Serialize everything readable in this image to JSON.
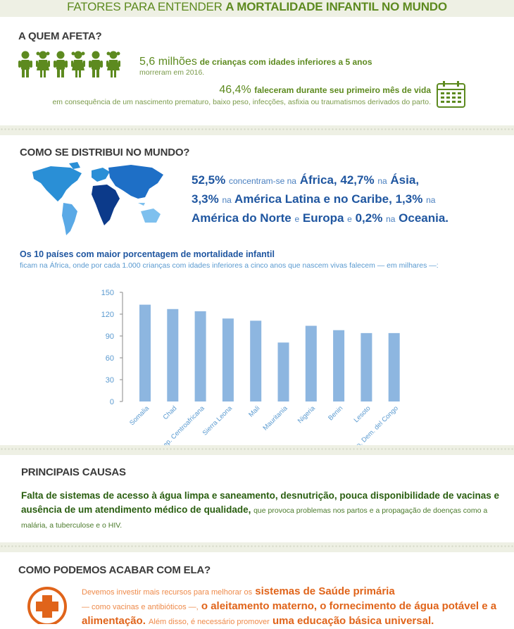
{
  "title": {
    "part1": "FATORES PARA ENTENDER",
    "part2": "A MORTALIDADE INFANTIL NO MUNDO"
  },
  "section1": {
    "heading": "A QUEM AFETA?",
    "stat1_value": "5,6 milhões",
    "stat1_text": "de crianças com idades inferiores a 5 anos",
    "stat1_sub": "morreram em 2016.",
    "stat2_value": "46,4%",
    "stat2_text": "faleceram durante seu primeiro mês de vida",
    "stat2_sub": "em consequência de um nascimento prematuro, baixo peso, infecções, asfixia ou traumatismos derivados do parto."
  },
  "section2": {
    "heading": "COMO SE DISTRIBUI NO MUNDO?",
    "p1": "52,5%",
    "t1": "concentram-se na",
    "r1": "África,",
    "p2": "42,7%",
    "t2": "na",
    "r2": "Ásia,",
    "p3": "3,3%",
    "t3": "na",
    "r3": "América Latina e no Caribe,",
    "p4": "1,3%",
    "t4": "na",
    "r4": "América do Norte",
    "t5": "e",
    "r5": "Europa",
    "t6": "e",
    "p6": "0,2%",
    "t7": "na",
    "r6": "Oceania."
  },
  "chart_title": "Os 10 países com maior porcentagem de mortalidade infantil",
  "chart_subtitle": "ficam na África, onde por cada 1.000 crianças com idades inferiores a cinco anos que nascem vivas falecem — em milhares —:",
  "chart_data": {
    "type": "bar",
    "categories": [
      "Somalia",
      "Chad",
      "Rep. Centroafricana",
      "Sierra Leona",
      "Mali",
      "Mauritania",
      "Nigeria",
      "Benin",
      "Lesoto",
      "Rep. Dem. del Congo"
    ],
    "values": [
      133,
      127,
      124,
      114,
      111,
      81,
      104,
      98,
      94,
      94
    ],
    "yticks": [
      0,
      30,
      60,
      90,
      120,
      150
    ],
    "ylim": [
      0,
      150
    ],
    "bar_color": "#8db6e0"
  },
  "section3": {
    "heading": "PRINCIPAIS CAUSAS",
    "bold": "Falta de sistemas de acesso à água limpa e saneamento, desnutrição, pouca disponibilidade de vacinas e ausência de um atendimento médico de qualidade,",
    "normal": "que provoca problemas nos partos e a propagação de doenças como a malária, a tuberculose e o HIV."
  },
  "section4": {
    "heading": "COMO PODEMOS ACABAR COM ELA?",
    "n1": "Devemos investir mais recursos para melhorar os",
    "b1": "sistemas de Saúde primária",
    "n2": "— como vacinas e antibióticos —,",
    "b2": "o aleitamento materno, o fornecimento de água potável e a alimentação.",
    "n3": "Além disso, é necessário promover",
    "b3": "uma educação básica universal."
  },
  "colors": {
    "green": "#5d8a1f",
    "blue": "#1f56a0",
    "orange": "#e0641a"
  }
}
